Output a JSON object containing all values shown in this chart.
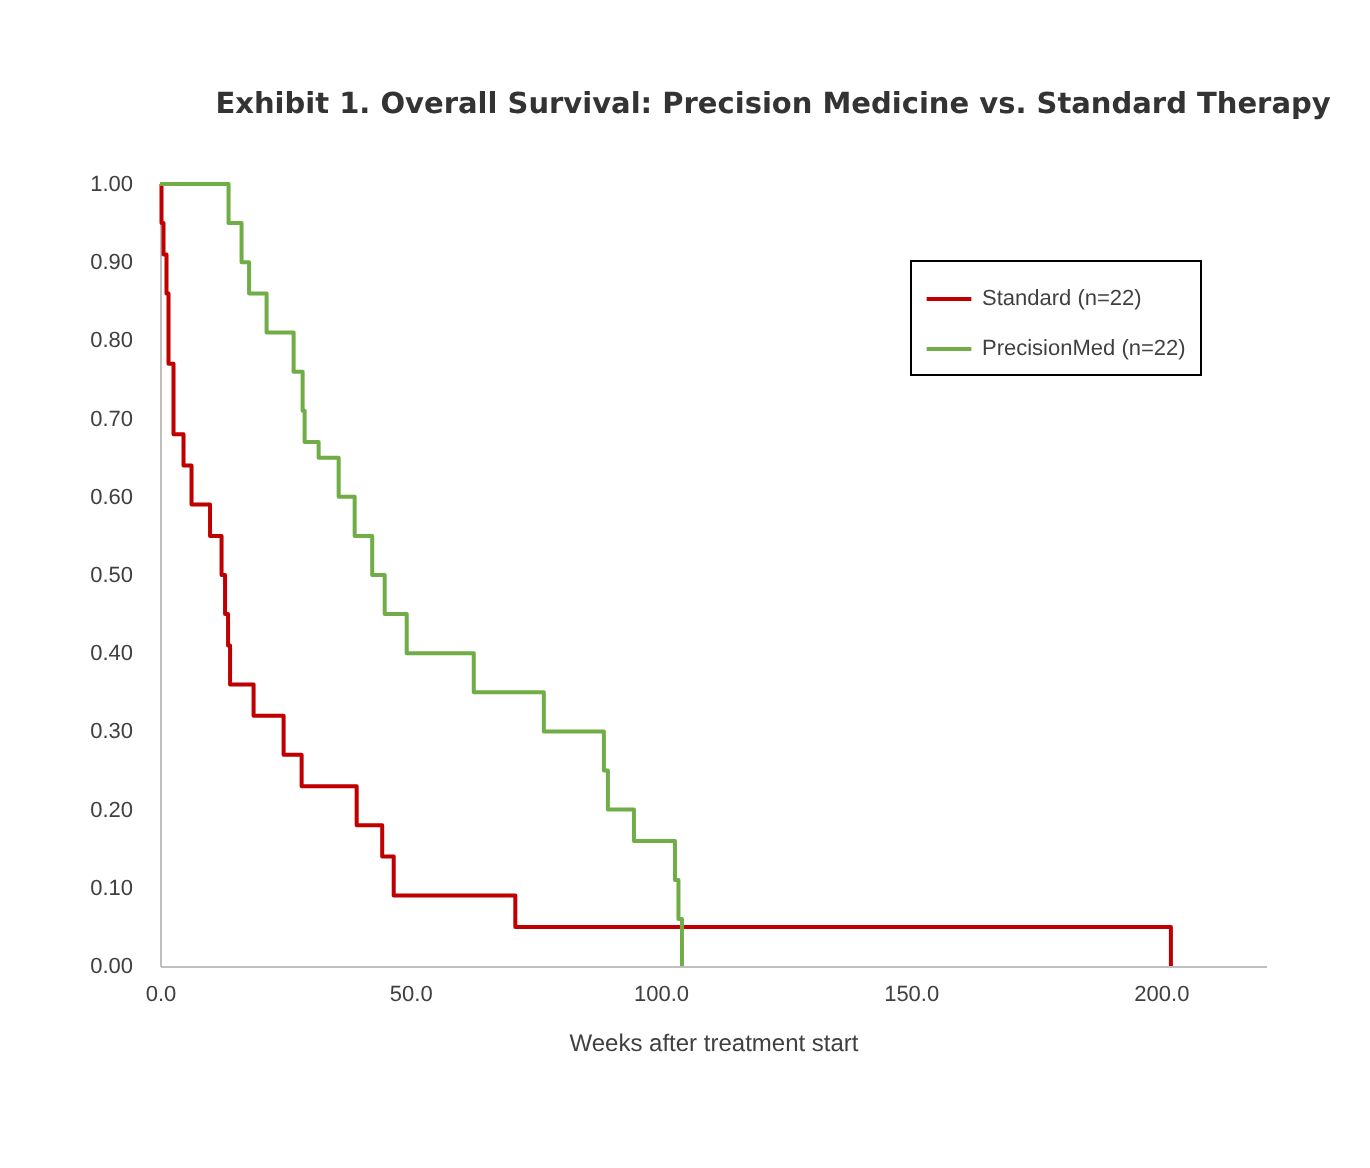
{
  "chart_data": {
    "type": "step",
    "title": "Exhibit 1.  Overall Survival: Precision Medicine vs. Standard Therapy",
    "xlabel": "Weeks after treatment start",
    "xlim": [
      0,
      221
    ],
    "xticks": [
      {
        "value": 0,
        "label": "0.0"
      },
      {
        "value": 50,
        "label": "50.0"
      },
      {
        "value": 100,
        "label": "100.0"
      },
      {
        "value": 150,
        "label": "150.0"
      },
      {
        "value": 200,
        "label": "200.0"
      }
    ],
    "ylim": [
      0,
      1
    ],
    "yticks": [
      {
        "value": 0,
        "label": "0.00"
      },
      {
        "value": 0.1,
        "label": "0.10"
      },
      {
        "value": 0.2,
        "label": "0.20"
      },
      {
        "value": 0.3,
        "label": "0.30"
      },
      {
        "value": 0.4,
        "label": "0.40"
      },
      {
        "value": 0.5,
        "label": "0.50"
      },
      {
        "value": 0.6,
        "label": "0.60"
      },
      {
        "value": 0.7,
        "label": "0.70"
      },
      {
        "value": 0.8,
        "label": "0.80"
      },
      {
        "value": 0.9,
        "label": "0.90"
      },
      {
        "value": 1,
        "label": "1.00"
      }
    ],
    "grid": false,
    "legend": "top right",
    "line_style": "solid",
    "marker": "none",
    "series": [
      {
        "name": "Standard (n=22)",
        "color": "#c00000",
        "x": [
          0,
          0.3,
          0.7,
          1.3,
          1.7,
          2.7,
          4.7,
          6.3,
          10,
          12.3,
          13,
          13.6,
          14,
          18.7,
          24.7,
          28.3,
          39.3,
          44.4,
          46.7,
          71,
          202
        ],
        "values": [
          1,
          0.95,
          0.91,
          0.86,
          0.77,
          0.68,
          0.64,
          0.59,
          0.55,
          0.5,
          0.45,
          0.41,
          0.36,
          0.32,
          0.27,
          0.23,
          0.18,
          0.14,
          0.09,
          0.05,
          0
        ]
      },
      {
        "name": "PrecisionMed (n=22)",
        "color": "#70ad47",
        "x": [
          0,
          13.7,
          16.3,
          17.8,
          21.3,
          26.7,
          28.5,
          28.9,
          31.7,
          35.7,
          38.9,
          42.4,
          44.9,
          49.3,
          62.7,
          76.7,
          88.7,
          89.5,
          94.7,
          102.9,
          103.6,
          104.3
        ],
        "values": [
          1,
          0.95,
          0.9,
          0.86,
          0.81,
          0.76,
          0.71,
          0.67,
          0.65,
          0.6,
          0.55,
          0.5,
          0.45,
          0.4,
          0.35,
          0.3,
          0.25,
          0.2,
          0.16,
          0.11,
          0.06,
          0
        ]
      }
    ]
  }
}
